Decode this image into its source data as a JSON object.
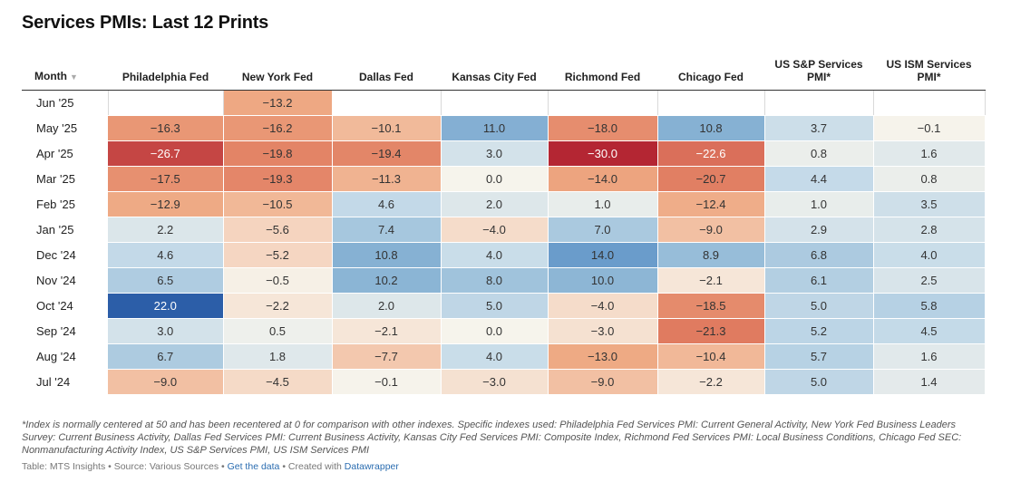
{
  "title": "Services PMIs: Last 12 Prints",
  "chart_data": {
    "type": "table",
    "title": "Services PMIs: Last 12 Prints",
    "sort_icon": "sort-descending-icon",
    "columns": [
      "Month",
      "Philadelphia Fed",
      "New York Fed",
      "Dallas Fed",
      "Kansas City Fed",
      "Richmond Fed",
      "Chicago Fed",
      "US S&P Services PMI*",
      "US ISM Services PMI*"
    ],
    "rows": [
      {
        "month": "Jun '25",
        "values": [
          null,
          -13.2,
          null,
          null,
          null,
          null,
          null,
          null
        ]
      },
      {
        "month": "May '25",
        "values": [
          -16.3,
          -16.2,
          -10.1,
          11.0,
          -18.0,
          10.8,
          3.7,
          -0.1
        ]
      },
      {
        "month": "Apr '25",
        "values": [
          -26.7,
          -19.8,
          -19.4,
          3.0,
          -30.0,
          -22.6,
          0.8,
          1.6
        ]
      },
      {
        "month": "Mar '25",
        "values": [
          -17.5,
          -19.3,
          -11.3,
          0.0,
          -14.0,
          -20.7,
          4.4,
          0.8
        ]
      },
      {
        "month": "Feb '25",
        "values": [
          -12.9,
          -10.5,
          4.6,
          2.0,
          1.0,
          -12.4,
          1.0,
          3.5
        ]
      },
      {
        "month": "Jan '25",
        "values": [
          2.2,
          -5.6,
          7.4,
          -4.0,
          7.0,
          -9.0,
          2.9,
          2.8
        ]
      },
      {
        "month": "Dec '24",
        "values": [
          4.6,
          -5.2,
          10.8,
          4.0,
          14.0,
          8.9,
          6.8,
          4.0
        ]
      },
      {
        "month": "Nov '24",
        "values": [
          6.5,
          -0.5,
          10.2,
          8.0,
          10.0,
          -2.1,
          6.1,
          2.5
        ]
      },
      {
        "month": "Oct '24",
        "values": [
          22.0,
          -2.2,
          2.0,
          5.0,
          -4.0,
          -18.5,
          5.0,
          5.8
        ]
      },
      {
        "month": "Sep '24",
        "values": [
          3.0,
          0.5,
          -2.1,
          0.0,
          -3.0,
          -21.3,
          5.2,
          4.5
        ]
      },
      {
        "month": "Aug '24",
        "values": [
          6.7,
          1.8,
          -7.7,
          4.0,
          -13.0,
          -10.4,
          5.7,
          1.6
        ]
      },
      {
        "month": "Jul '24",
        "values": [
          -9.0,
          -4.5,
          -0.1,
          -3.0,
          -9.0,
          -2.2,
          5.0,
          1.4
        ]
      }
    ],
    "color_scale": {
      "min": -30,
      "max": 22,
      "negative_colors": [
        "#f6f4ec",
        "#f5d3bd",
        "#eea882",
        "#e07b60",
        "#b42633"
      ],
      "positive_colors": [
        "#f6f4ec",
        "#c6dbe9",
        "#8fb8d6",
        "#5c91c7",
        "#2c5ea8"
      ]
    }
  },
  "footnote": "*Index is normally centered at 50 and has been recentered at 0 for comparison with other indexes. Specific indexes used: Philadelphia Fed Services PMI: Current General Activity, New York Fed Business Leaders Survey: Current Business Activity, Dallas Fed Services PMI: Current Business Activity, Kansas City Fed Services PMI: Composite Index, Richmond Fed Services PMI: Local Business Conditions, Chicago Fed SEC: Nonmanufacturing Activity Index, US S&P Services PMI, US ISM Services PMI",
  "source": {
    "prefix": "Table: MTS Insights • Source: Various Sources •",
    "get_data": "Get the data",
    "middle": "• Created with",
    "tool": "Datawrapper"
  }
}
